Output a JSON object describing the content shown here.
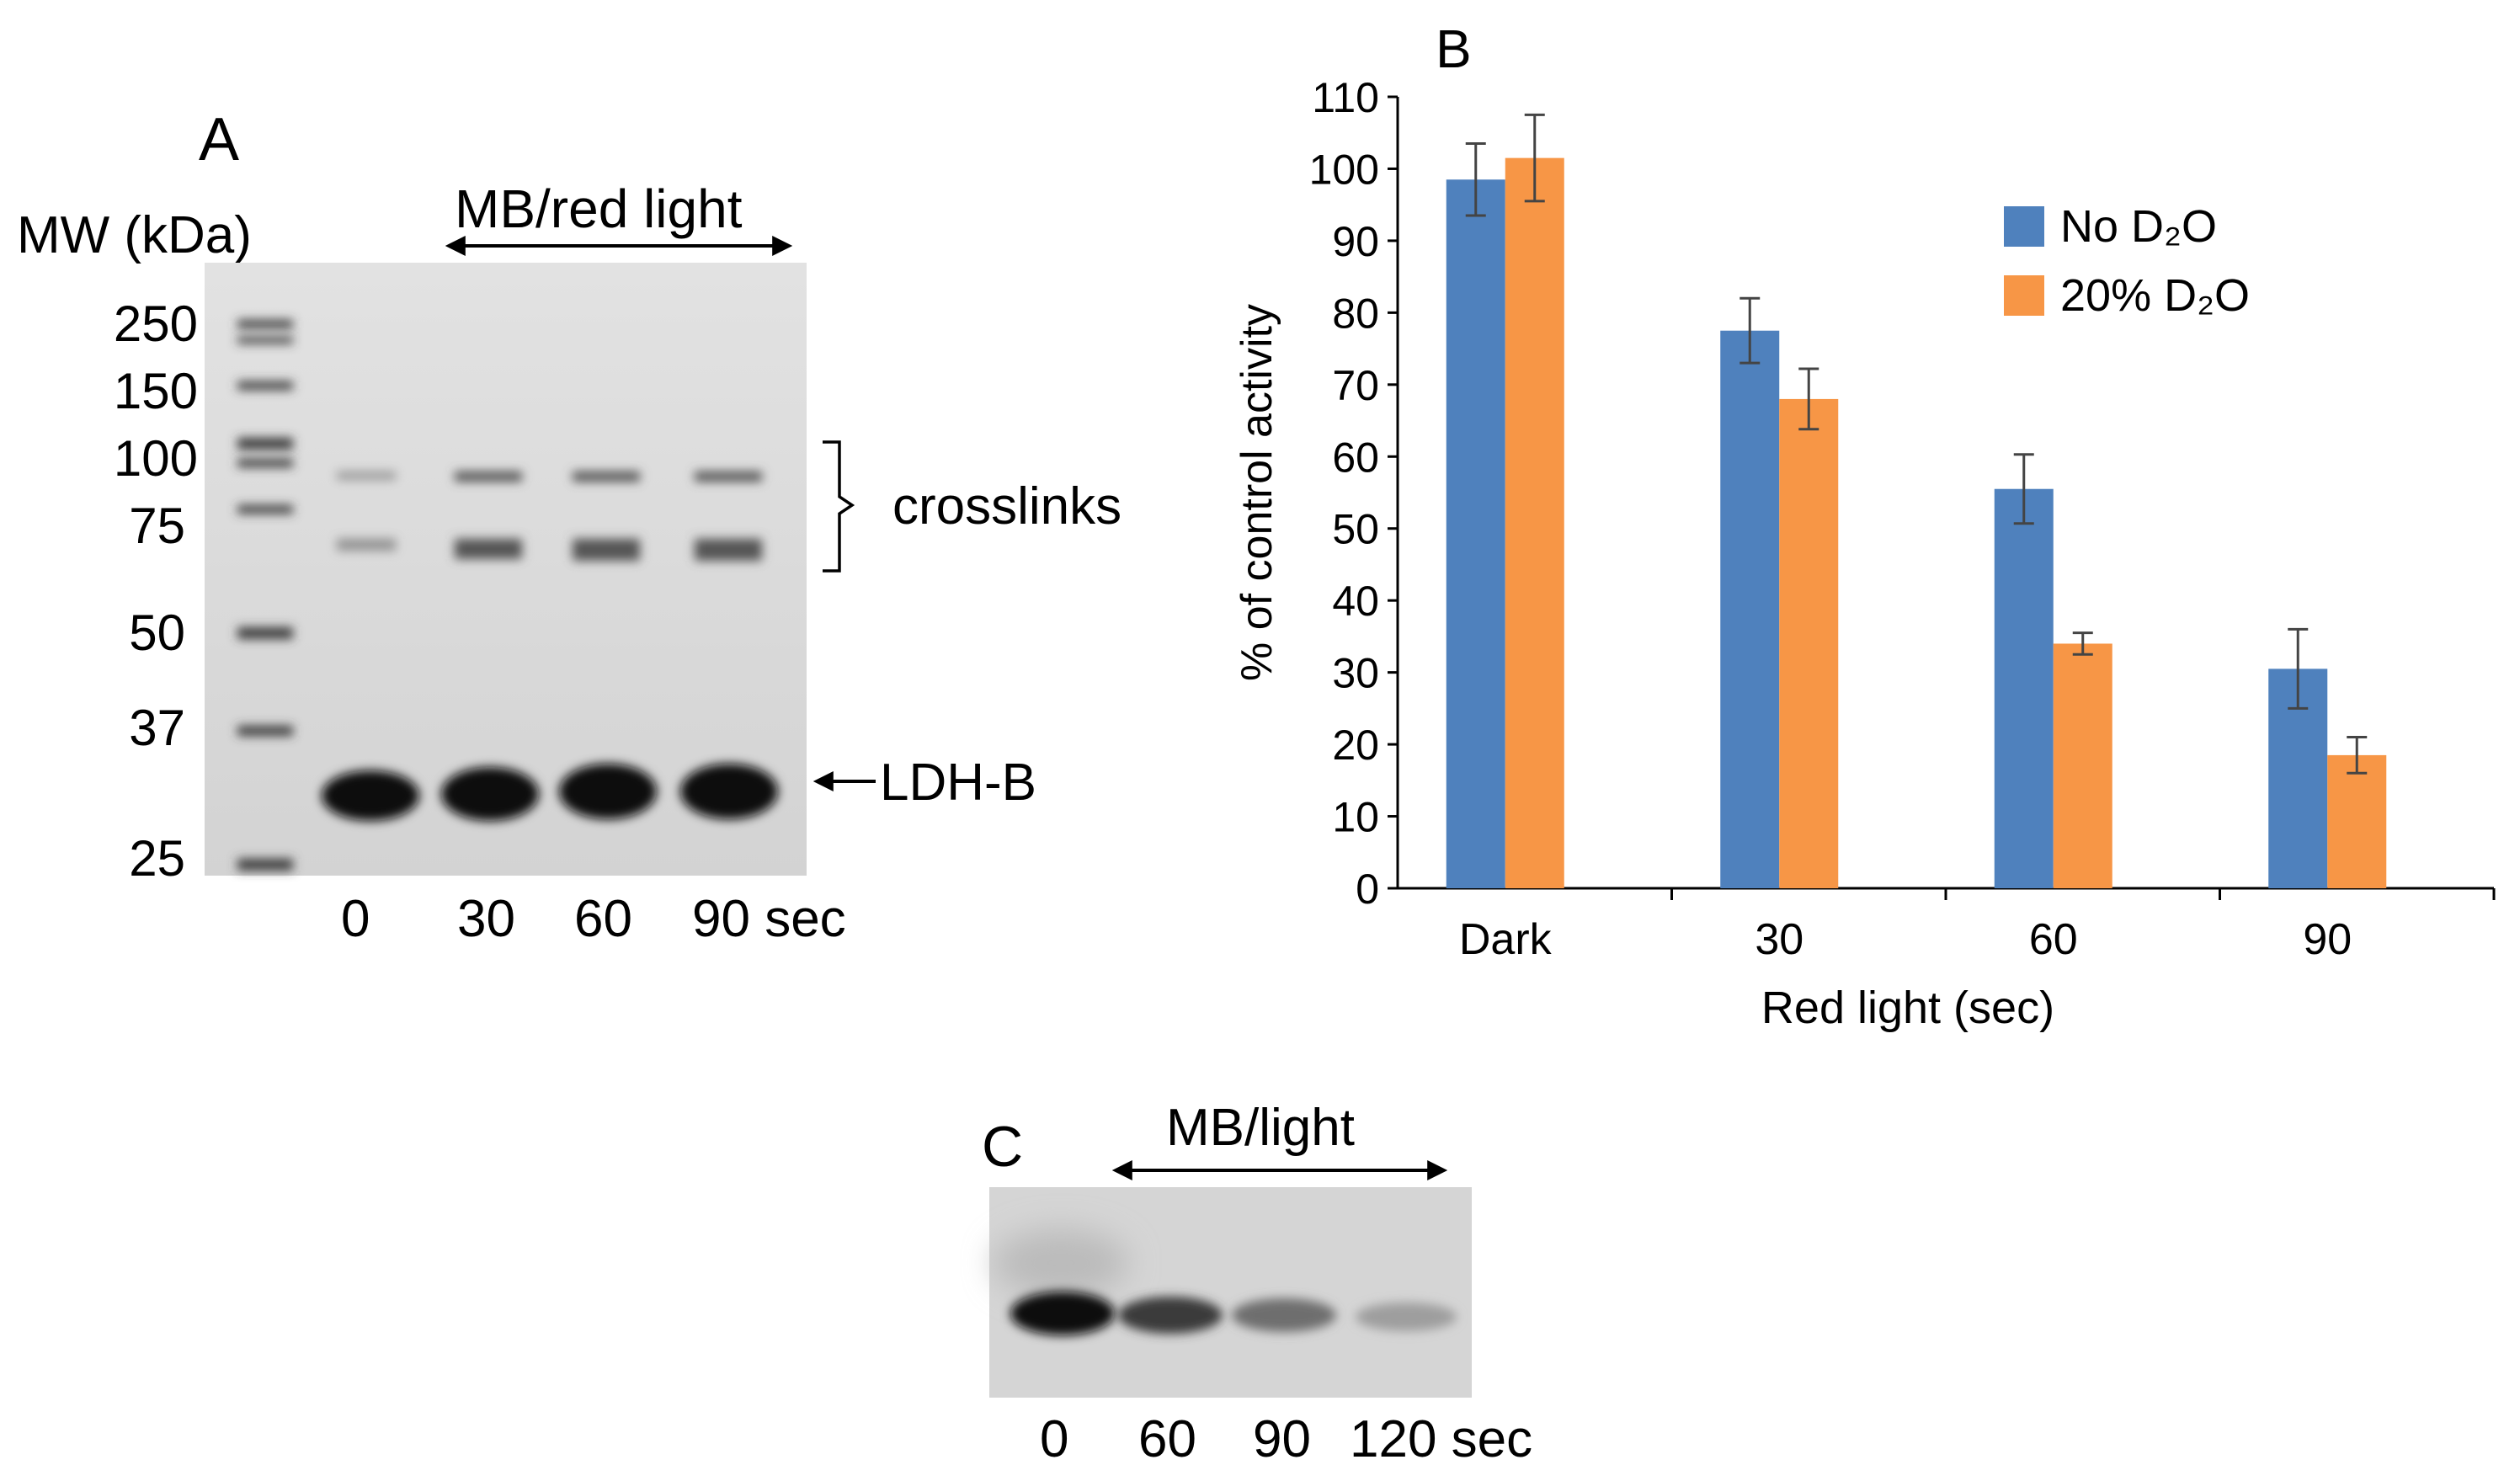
{
  "panel_a": {
    "letter": "A",
    "mw_label": "MW (kDa)",
    "treatment_label": "MB/red light",
    "markers": [
      "250",
      "150",
      "100",
      "75",
      "50",
      "37",
      "25"
    ],
    "lanes": [
      "0",
      "30",
      "60",
      "90 sec"
    ],
    "crosslinks_label": "crosslinks",
    "ldh_label": "LDH-B"
  },
  "panel_b": {
    "letter": "B"
  },
  "panel_c": {
    "letter": "C",
    "treatment_label": "MB/light",
    "lanes": [
      "0",
      "60",
      "90",
      "120 sec"
    ]
  },
  "chart_data": {
    "type": "bar",
    "categories": [
      "Dark",
      "30",
      "60",
      "90"
    ],
    "xlabel": "Red light (sec)",
    "ylabel": "% of control activity",
    "ylim": [
      0,
      110
    ],
    "yticks": [
      0,
      10,
      20,
      30,
      40,
      50,
      60,
      70,
      80,
      90,
      100,
      110
    ],
    "legend_position": "top-right",
    "series": [
      {
        "name": "No D₂O",
        "color": "#4f81bd",
        "values": [
          98.5,
          77.5,
          55.5,
          30.5
        ],
        "errors": [
          5,
          4.5,
          4.8,
          5.5
        ]
      },
      {
        "name": "20% D₂O",
        "color": "#f79646",
        "values": [
          101.5,
          68,
          34,
          18.5
        ],
        "errors": [
          6,
          4.2,
          1.5,
          2.5
        ]
      }
    ]
  }
}
